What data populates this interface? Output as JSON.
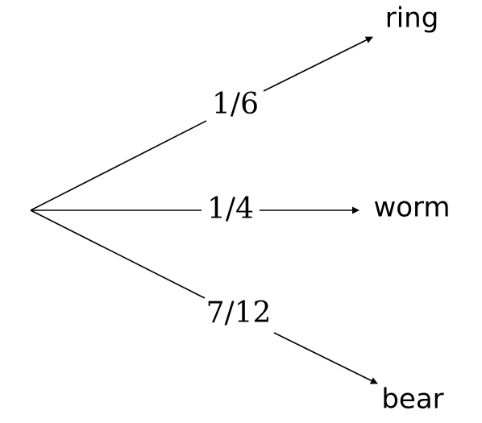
{
  "tree": {
    "root": {
      "label": ""
    },
    "branches": [
      {
        "probability": "1/6",
        "outcome": "ring"
      },
      {
        "probability": "1/4",
        "outcome": "worm"
      },
      {
        "probability": "7/12",
        "outcome": "bear"
      }
    ]
  }
}
